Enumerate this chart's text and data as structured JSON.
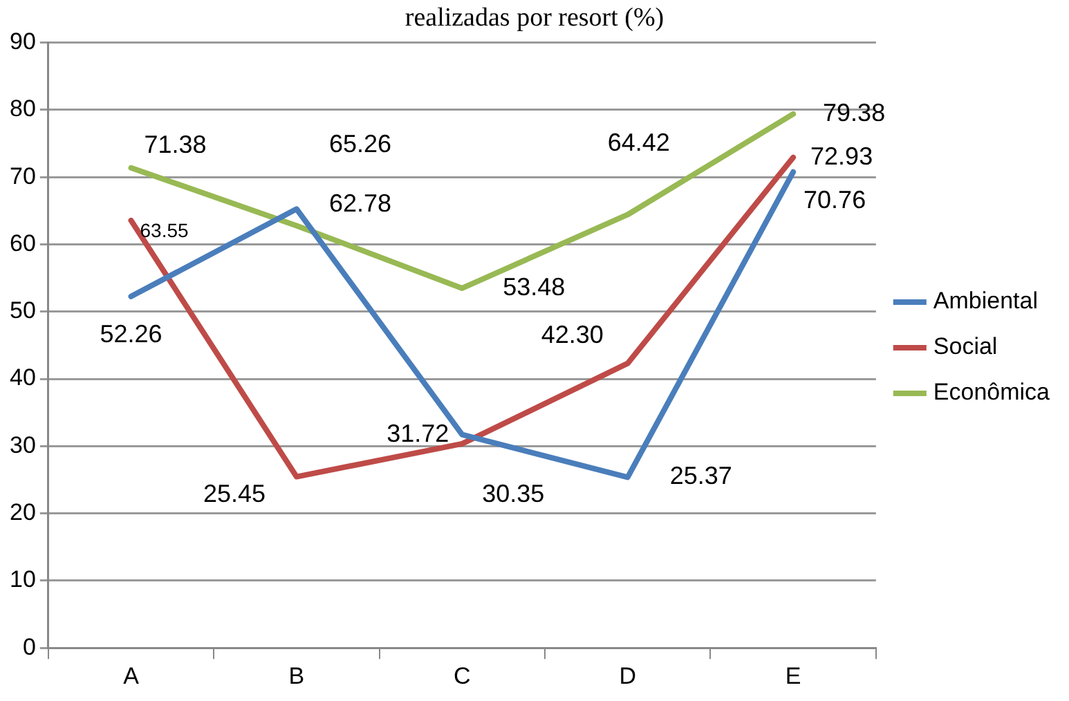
{
  "chart_data": {
    "type": "line",
    "title": "realizadas por resort (%)",
    "categories": [
      "A",
      "B",
      "C",
      "D",
      "E"
    ],
    "series": [
      {
        "name": "Ambiental",
        "color": "#4a7ebb",
        "values": [
          52.26,
          65.26,
          31.72,
          25.37,
          70.76
        ],
        "value_labels": [
          "52.26",
          "65.26",
          "31.72",
          "25.37",
          "70.76"
        ]
      },
      {
        "name": "Social",
        "color": "#be4b48",
        "values": [
          63.55,
          25.45,
          30.35,
          42.3,
          72.93
        ],
        "value_labels": [
          "63.55",
          "25.45",
          "30.35",
          "42.30",
          "72.93"
        ]
      },
      {
        "name": "Econômica",
        "color": "#98b954",
        "values": [
          71.38,
          62.78,
          53.48,
          64.42,
          79.38
        ],
        "value_labels": [
          "71.38",
          "62.78",
          "53.48",
          "64.42",
          "79.38"
        ]
      }
    ],
    "ylim": [
      0,
      90
    ],
    "yticks": [
      0,
      10,
      20,
      30,
      40,
      50,
      60,
      70,
      80,
      90
    ],
    "grid": "y",
    "legend": "right",
    "marker": "none",
    "line_style": "solid"
  }
}
